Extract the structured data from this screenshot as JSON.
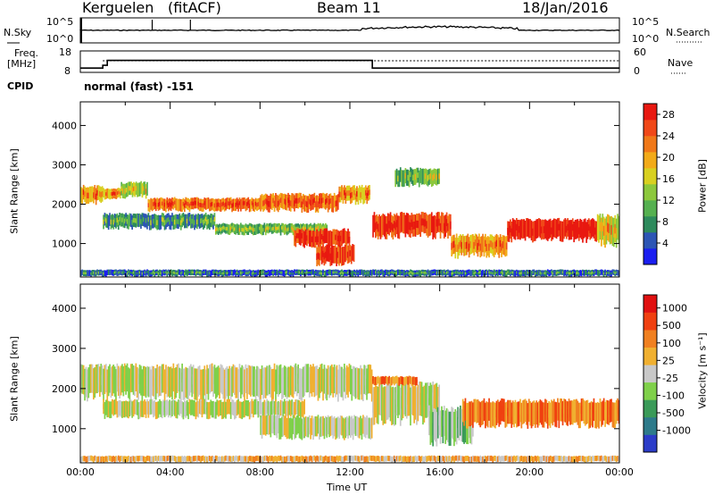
{
  "header": {
    "station": "Kerguelen",
    "mode": "(fitACF)",
    "beam": "Beam 11",
    "date": "18/Jan/2016"
  },
  "sky_panel": {
    "left_label": "N.Sky",
    "right_label": "N.Search",
    "left_ticks": [
      "10^5",
      "10^0"
    ],
    "right_ticks": [
      "10^5",
      "10^0"
    ]
  },
  "freq_panel": {
    "left_label_1": "Freq.",
    "left_label_2": "[MHz]",
    "right_label": "Nave",
    "left_ticks": [
      "18",
      "8"
    ],
    "right_ticks": [
      "60",
      "0"
    ],
    "freq_steps": [
      {
        "t": 0,
        "mhz": 10
      },
      {
        "t": 1,
        "mhz": 11.3
      },
      {
        "t": 1.2,
        "mhz": 13.6
      },
      {
        "t": 12.9,
        "mhz": 13.6
      },
      {
        "t": 13.0,
        "mhz": 10
      },
      {
        "t": 24,
        "mhz": 10
      }
    ]
  },
  "cpid": {
    "label": "CPID",
    "value": "normal (fast) -151"
  },
  "chart_data": [
    {
      "type": "heatmap",
      "name": "power",
      "ylabel": "Slant Range [km]",
      "yticks": [
        1000,
        2000,
        3000,
        4000
      ],
      "ylim": [
        150,
        4600
      ],
      "xlim": [
        0,
        24
      ],
      "colorbar": {
        "label": "Power [dB]",
        "ticks": [
          "4",
          "8",
          "12",
          "16",
          "20",
          "24",
          "28"
        ],
        "colors": [
          "#1a1ef0",
          "#2c55b4",
          "#2d8a5c",
          "#55b050",
          "#8cc83c",
          "#d8d020",
          "#f2aa18",
          "#f07818",
          "#f04818",
          "#e81810"
        ]
      },
      "bands": [
        {
          "t0": 0.0,
          "t1": 1.0,
          "r0": 2050,
          "r1": 2450,
          "level": 6
        },
        {
          "t0": 1.0,
          "t1": 1.8,
          "r0": 2150,
          "r1": 2400,
          "level": 6
        },
        {
          "t0": 1.8,
          "t1": 3.0,
          "r0": 2200,
          "r1": 2550,
          "level": 4
        },
        {
          "t0": 3.0,
          "t1": 8.0,
          "r0": 1850,
          "r1": 2150,
          "level": 7
        },
        {
          "t0": 8.0,
          "t1": 11.5,
          "r0": 1850,
          "r1": 2250,
          "level": 7
        },
        {
          "t0": 11.5,
          "t1": 12.9,
          "r0": 2050,
          "r1": 2450,
          "level": 6
        },
        {
          "t0": 1.0,
          "t1": 6.0,
          "r0": 1400,
          "r1": 1750,
          "level": 2
        },
        {
          "t0": 6.0,
          "t1": 11.0,
          "r0": 1250,
          "r1": 1500,
          "level": 3
        },
        {
          "t0": 9.5,
          "t1": 12.0,
          "r0": 950,
          "r1": 1350,
          "level": 8
        },
        {
          "t0": 10.5,
          "t1": 12.2,
          "r0": 500,
          "r1": 950,
          "level": 8
        },
        {
          "t0": 13.0,
          "t1": 16.5,
          "r0": 1200,
          "r1": 1750,
          "level": 8
        },
        {
          "t0": 16.5,
          "t1": 19.0,
          "r0": 700,
          "r1": 1200,
          "level": 6
        },
        {
          "t0": 19.0,
          "t1": 23.0,
          "r0": 1100,
          "r1": 1600,
          "level": 9
        },
        {
          "t0": 23.0,
          "t1": 24.0,
          "r0": 1000,
          "r1": 1700,
          "level": 5
        },
        {
          "t0": 0.0,
          "t1": 24.0,
          "r0": 180,
          "r1": 330,
          "level": 1
        },
        {
          "t0": 14.0,
          "t1": 16.0,
          "r0": 2500,
          "r1": 2900,
          "level": 3
        }
      ]
    },
    {
      "type": "heatmap",
      "name": "velocity",
      "ylabel": "Slant Range [km]",
      "yticks": [
        1000,
        2000,
        3000,
        4000
      ],
      "ylim": [
        150,
        4600
      ],
      "xlim": [
        0,
        24
      ],
      "colorbar": {
        "label": "Velocity [m s⁻¹]",
        "ticks": [
          "1000",
          "500",
          "100",
          "25",
          "-25",
          "-100",
          "-500",
          "-1000"
        ],
        "colors": [
          "#2b3cc8",
          "#2d7a8a",
          "#3a9a58",
          "#7fd04a",
          "#c8c8c8",
          "#f0b030",
          "#f08020",
          "#f04010",
          "#e01010"
        ]
      },
      "bands": [
        {
          "t0": 0.0,
          "t1": 13.0,
          "r0": 1800,
          "r1": 2550,
          "level": 4
        },
        {
          "t0": 1.0,
          "t1": 10.0,
          "r0": 1300,
          "r1": 1700,
          "level": 4
        },
        {
          "t0": 8.0,
          "t1": 13.0,
          "r0": 800,
          "r1": 1300,
          "level": 4
        },
        {
          "t0": 13.0,
          "t1": 16.0,
          "r0": 1200,
          "r1": 2100,
          "level": 4
        },
        {
          "t0": 15.5,
          "t1": 17.5,
          "r0": 700,
          "r1": 1500,
          "level": 3
        },
        {
          "t0": 17.0,
          "t1": 24.0,
          "r0": 1100,
          "r1": 1700,
          "level": 6
        },
        {
          "t0": 0.0,
          "t1": 24.0,
          "r0": 180,
          "r1": 320,
          "level": 5
        },
        {
          "t0": 13.0,
          "t1": 15.0,
          "r0": 2100,
          "r1": 2300,
          "level": 6
        }
      ]
    }
  ],
  "xaxis": {
    "label": "Time UT",
    "ticks": [
      "00:00",
      "04:00",
      "08:00",
      "12:00",
      "16:00",
      "20:00",
      "00:00"
    ]
  }
}
